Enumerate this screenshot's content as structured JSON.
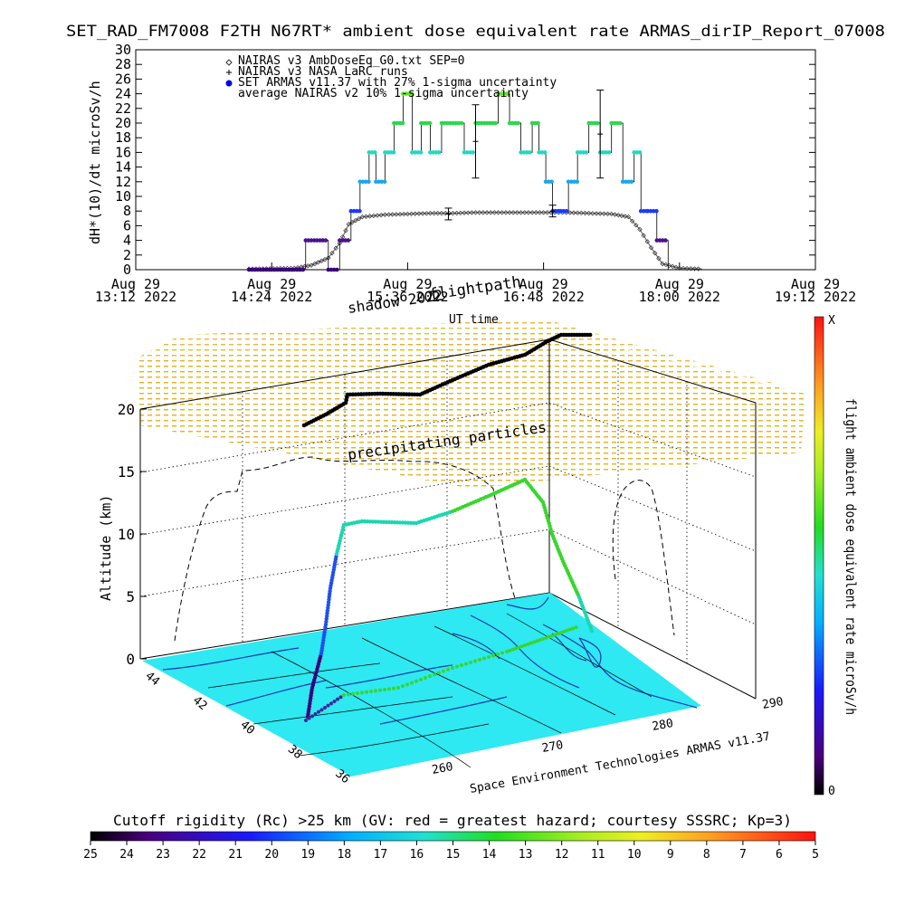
{
  "chart_data": [
    {
      "type": "scatter",
      "title": "SET_RAD_FM7008  F2TH N67RT* ambient dose equivalent rate ARMAS_dirIP_Report_07008",
      "ylabel": "dH*(10)/dt microSv/h",
      "xlabel": "UT time",
      "ylim": [
        0,
        30
      ],
      "y_ticks": [
        "0",
        "2",
        "4",
        "6",
        "8",
        "10",
        "12",
        "14",
        "16",
        "18",
        "20",
        "22",
        "24",
        "26",
        "28",
        "30"
      ],
      "x_ticks": [
        {
          "line1": "Aug 29",
          "line2": "13:12 2022"
        },
        {
          "line1": "Aug 29",
          "line2": "14:24 2022"
        },
        {
          "line1": "Aug 29",
          "line2": "15:36 2022"
        },
        {
          "line1": "Aug 29",
          "line2": "16:48 2022"
        },
        {
          "line1": "Aug 29",
          "line2": "18:00 2022"
        },
        {
          "line1": "Aug 29",
          "line2": "19:12 2022"
        }
      ],
      "xlim_hours": [
        13.2,
        19.2
      ],
      "legend_position": "top-left",
      "legend": [
        {
          "label": "NAIRAS v3 AmbDoseEq_G0.txt SEP=0",
          "symbol": "diamond",
          "color": "#333333"
        },
        {
          "label": "NAIRAS v3 NASA LaRC runs",
          "symbol": "plus",
          "color": "#000000"
        },
        {
          "label": "SET ARMAS v11.37 with 27% 1-sigma uncertainty",
          "symbol": "dot",
          "color": "#0000ee"
        },
        {
          "label": "average NAIRAS v2 10% 1-sigma uncertainty",
          "symbol": "none",
          "color": "#000000"
        }
      ],
      "series": [
        {
          "name": "SET ARMAS v11.37 with 27% 1-sigma uncertainty",
          "x_hours": [
            14.2,
            14.4,
            14.6,
            14.7,
            14.8,
            14.9,
            15.0,
            15.05,
            15.1,
            15.18,
            15.26,
            15.32,
            15.4,
            15.48,
            15.56,
            15.64,
            15.72,
            15.8,
            15.9,
            16.0,
            16.1,
            16.2,
            16.3,
            16.4,
            16.5,
            16.6,
            16.7,
            16.76,
            16.82,
            16.88,
            16.95,
            17.02,
            17.1,
            17.2,
            17.3,
            17.4,
            17.5,
            17.6,
            17.66,
            17.72,
            17.8,
            17.9
          ],
          "y": [
            0,
            0,
            0,
            4,
            4,
            0,
            4,
            4,
            8,
            12,
            16,
            12,
            16,
            20,
            24,
            16,
            20,
            16,
            20,
            20,
            16,
            20,
            20,
            24,
            20,
            16,
            20,
            16,
            12,
            8,
            8,
            12,
            16,
            20,
            16,
            20,
            12,
            16,
            8,
            8,
            4,
            0
          ]
        },
        {
          "name": "NAIRAS v3 AmbDoseEq_G0.txt SEP=0",
          "x_hours": [
            14.2,
            14.6,
            14.75,
            14.9,
            15.0,
            15.08,
            15.2,
            15.4,
            15.6,
            15.8,
            16.0,
            16.2,
            16.4,
            16.6,
            16.8,
            17.0,
            17.2,
            17.4,
            17.55,
            17.65,
            17.75,
            17.85,
            18.0,
            18.2
          ],
          "y": [
            0.1,
            0.2,
            0.6,
            1.6,
            3.6,
            6.2,
            7.2,
            7.5,
            7.6,
            7.7,
            7.7,
            7.8,
            7.8,
            7.8,
            7.8,
            7.8,
            7.7,
            7.6,
            7.2,
            5.5,
            3.0,
            0.8,
            0.2,
            0.1
          ]
        },
        {
          "name": "NAIRAS v3 NASA LaRC runs",
          "x_hours": [
            15.96,
            16.2,
            16.88,
            17.3
          ],
          "y": [
            7.6,
            17.5,
            8.0,
            18.5
          ],
          "y_err": [
            0.8,
            5.0,
            0.8,
            6.0
          ]
        }
      ]
    },
    {
      "type": "scatter",
      "title": "",
      "ylabel": "Altitude (km)",
      "z_ticks": [
        "0",
        "5",
        "10",
        "15",
        "20"
      ],
      "lat_ticks": [
        "44",
        "42",
        "40",
        "38",
        "36"
      ],
      "lon_ticks": [
        "260",
        "270",
        "280",
        "290"
      ],
      "annotations": {
        "shadow": "shadow 2022",
        "flightpath": "flightpath",
        "ut_time": "UT time",
        "precip": "precipitating particles",
        "credit": "Space Environment Technologies ARMAS v11.37"
      },
      "colorbar_right": {
        "label": "flight ambient dose equivalent rate microSv/h",
        "top": "X",
        "bottom": "0"
      },
      "colorbar_bottom": {
        "label": "Cutoff rigidity (Rc) >25 km (GV: red = greatest hazard; courtesy SSSRC; Kp=3)",
        "ticks": [
          "25",
          "24",
          "23",
          "22",
          "21",
          "20",
          "19",
          "18",
          "17",
          "16",
          "15",
          "14",
          "13",
          "12",
          "11",
          "10",
          "9",
          "8",
          "7",
          "6",
          "5"
        ]
      },
      "flight_altitude_km": [
        0,
        2,
        5,
        6,
        7,
        10,
        11,
        11,
        11.5,
        12,
        12,
        13,
        13.5,
        14,
        12,
        9,
        6,
        3,
        0
      ],
      "colors": {
        "ground": "#2ee8f2",
        "track_low": "#3a007a",
        "track_mid": "#1ad7b0",
        "track_high": "#38d62e"
      }
    }
  ]
}
